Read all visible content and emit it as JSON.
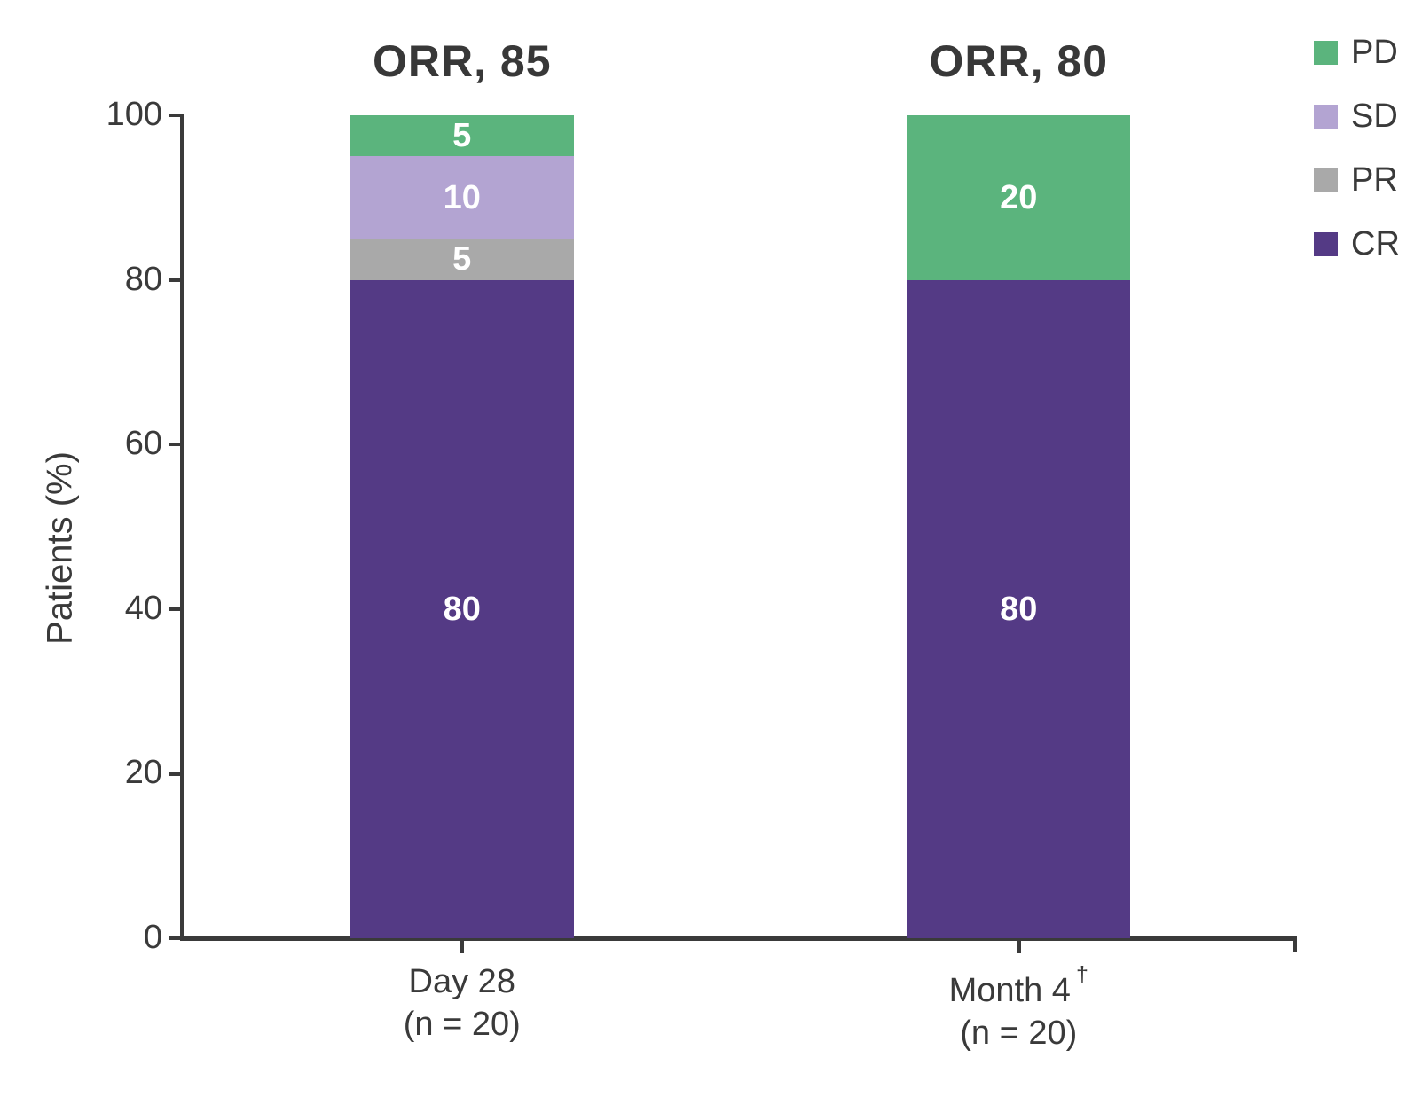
{
  "chart_data": {
    "type": "bar",
    "stacked": true,
    "ylabel": "Patients (%)",
    "ylim": [
      0,
      100
    ],
    "yticks": [
      0,
      20,
      40,
      60,
      80,
      100
    ],
    "grid": false,
    "legend_position": "top-right",
    "categories": [
      {
        "line1": "Day 28",
        "sup": "",
        "line2": "(n = 20)",
        "orr_title": "ORR, 85"
      },
      {
        "line1": "Month 4",
        "sup": "†",
        "line2": "(n = 20)",
        "orr_title": "ORR, 80"
      }
    ],
    "series": [
      {
        "name": "CR",
        "color": "#543a85",
        "values": [
          80,
          80
        ]
      },
      {
        "name": "PR",
        "color": "#a9a9a9",
        "values": [
          5,
          0
        ]
      },
      {
        "name": "SD",
        "color": "#b3a4d2",
        "values": [
          10,
          0
        ]
      },
      {
        "name": "PD",
        "color": "#5bb47d",
        "values": [
          5,
          20
        ]
      }
    ],
    "legend_entries": [
      {
        "label": "PD",
        "color": "#5bb47d"
      },
      {
        "label": "SD",
        "color": "#b3a4d2"
      },
      {
        "label": "PR",
        "color": "#a9a9a9"
      },
      {
        "label": "CR",
        "color": "#543a85"
      }
    ],
    "colors": {
      "axis": "#3a3a3a",
      "text": "#3a3a3a",
      "bar_value_label": "#ffffff",
      "background": "#ffffff"
    }
  }
}
